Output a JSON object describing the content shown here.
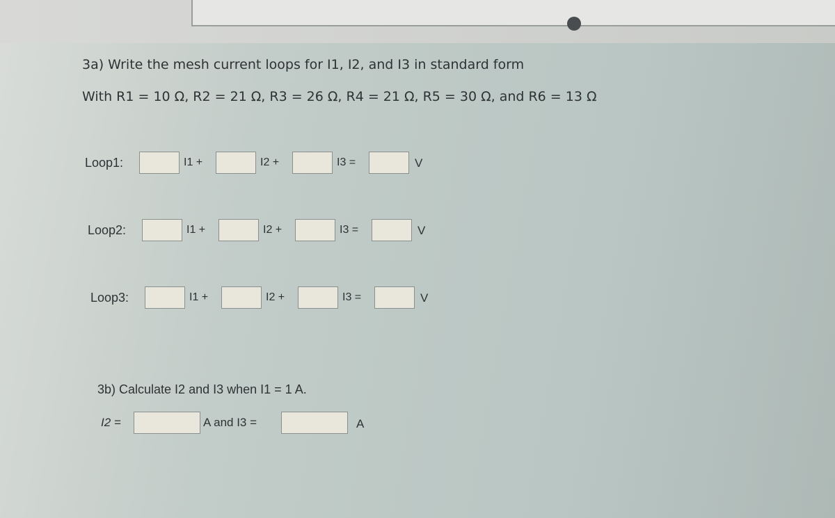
{
  "heading": "3a) Write the mesh current loops for I1, I2, and I3 in standard form",
  "given": "With R1 = 10 Ω, R2 = 21 Ω, R3 = 26 Ω, R4 = 21 Ω, R5 = 30 Ω, and R6 = 13 Ω",
  "loops": [
    {
      "label": "Loop1:",
      "terms": [
        "I1 +",
        "I2 +",
        "I3 ="
      ],
      "unit": "V"
    },
    {
      "label": "Loop2:",
      "terms": [
        "I1 +",
        "I2 +",
        "I3 ="
      ],
      "unit": "V"
    },
    {
      "label": "Loop3:",
      "terms": [
        "I1 +",
        "I2 +",
        "I3 ="
      ],
      "unit": "V"
    }
  ],
  "part_b": {
    "heading": "3b) Calculate I2 and I3 when I1 = 1 A.",
    "label": "I2 =",
    "middle": "A and I3 =",
    "unit": "A"
  }
}
